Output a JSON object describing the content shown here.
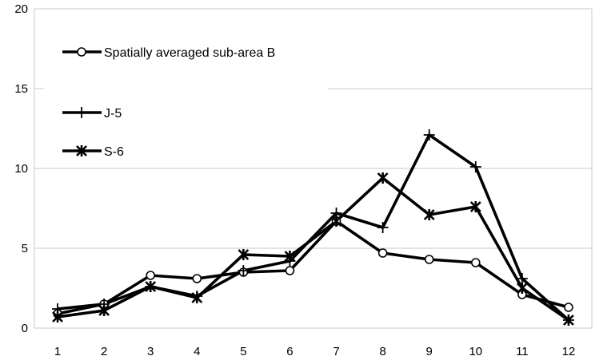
{
  "chart_data": {
    "type": "line",
    "x": [
      1,
      2,
      3,
      4,
      5,
      6,
      7,
      8,
      9,
      10,
      11,
      12
    ],
    "xticks": [
      "1",
      "2",
      "3",
      "4",
      "5",
      "6",
      "7",
      "8",
      "9",
      "10",
      "11",
      "12"
    ],
    "ylim": [
      0,
      20
    ],
    "yticks": [
      "0",
      "5",
      "10",
      "15",
      "20"
    ],
    "grid": "horizontal",
    "legend_position": "top-left",
    "series": [
      {
        "name": "Spatially averaged sub-area B",
        "marker": "circle",
        "values": [
          0.9,
          1.5,
          3.3,
          3.1,
          3.5,
          3.6,
          6.7,
          4.7,
          4.3,
          4.1,
          2.1,
          1.3
        ]
      },
      {
        "name": "J-5",
        "marker": "plus",
        "values": [
          1.2,
          1.5,
          2.6,
          2.0,
          3.6,
          4.2,
          7.2,
          6.3,
          12.1,
          10.1,
          3.1,
          0.5
        ]
      },
      {
        "name": "S-6",
        "marker": "x-star",
        "values": [
          0.7,
          1.1,
          2.6,
          1.9,
          4.6,
          4.5,
          6.7,
          9.4,
          7.1,
          7.6,
          2.5,
          0.5
        ]
      }
    ]
  }
}
